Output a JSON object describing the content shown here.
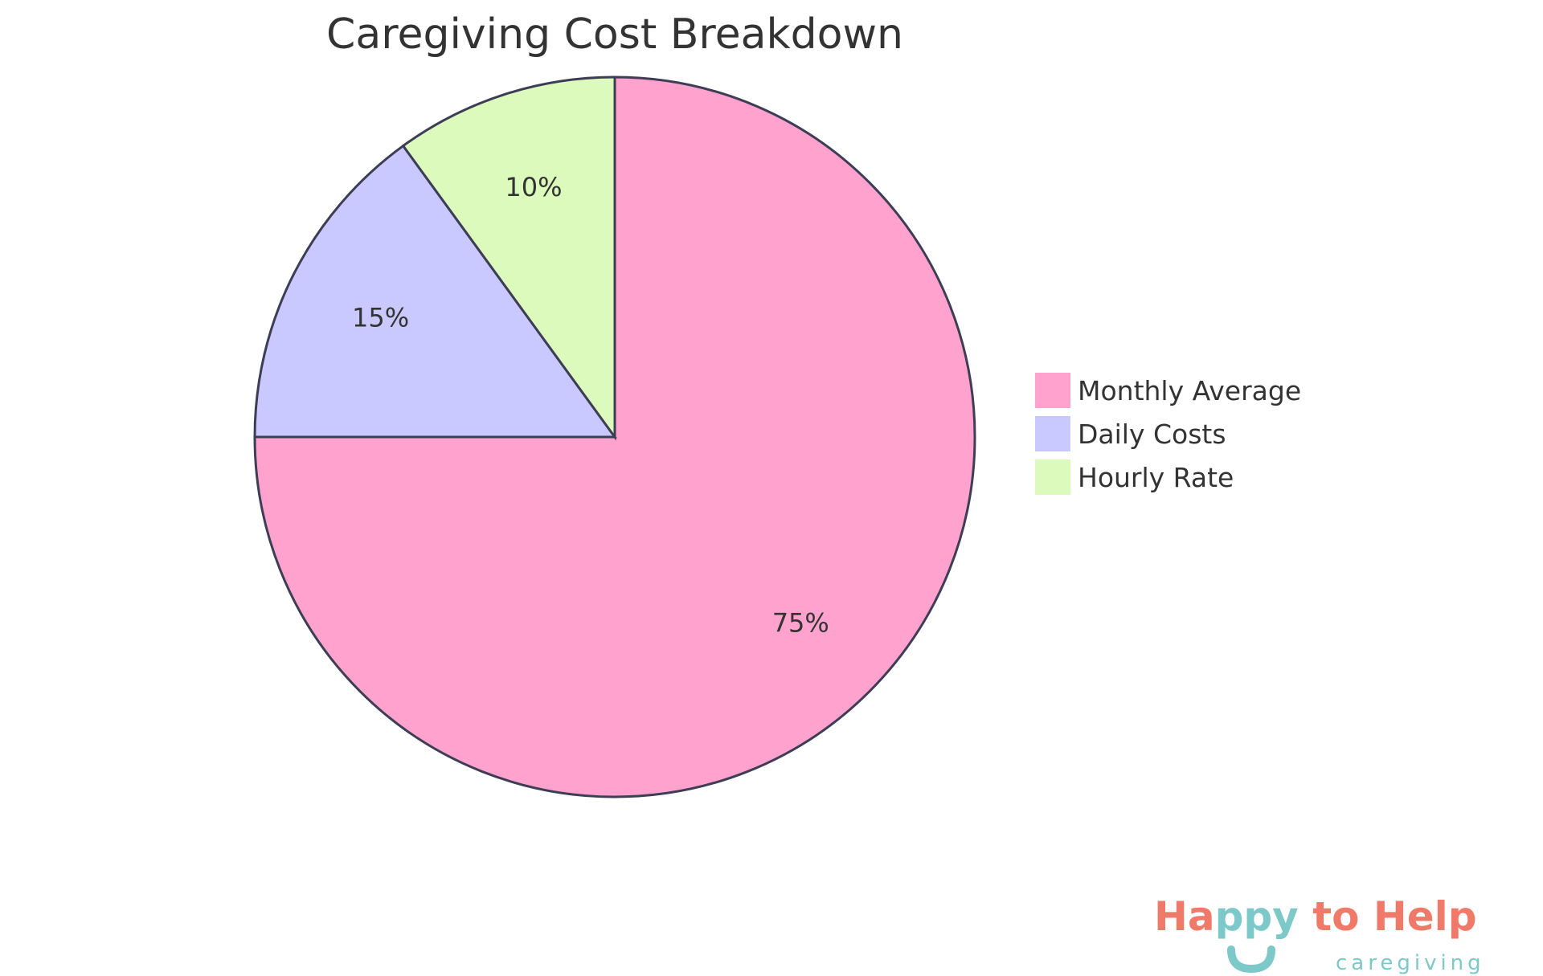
{
  "chart_data": {
    "type": "pie",
    "title": "Caregiving Cost Breakdown",
    "start": "top",
    "direction": "clockwise",
    "legend_position": "right",
    "slices": [
      {
        "name": "Monthly Average",
        "value": 75,
        "label": "75%",
        "color": "#FFA3CE"
      },
      {
        "name": "Daily Costs",
        "value": 15,
        "label": "15%",
        "color": "#C9C9FF"
      },
      {
        "name": "Hourly Rate",
        "value": 10,
        "label": "10%",
        "color": "#DBFABB"
      }
    ],
    "stroke_color": "#3D3D55"
  },
  "logo": {
    "parts": [
      "Ha",
      "ppy",
      " to Help"
    ],
    "sub": "caregiving",
    "colors": {
      "coral": "#F07A6A",
      "teal": "#7DC8C8"
    }
  }
}
